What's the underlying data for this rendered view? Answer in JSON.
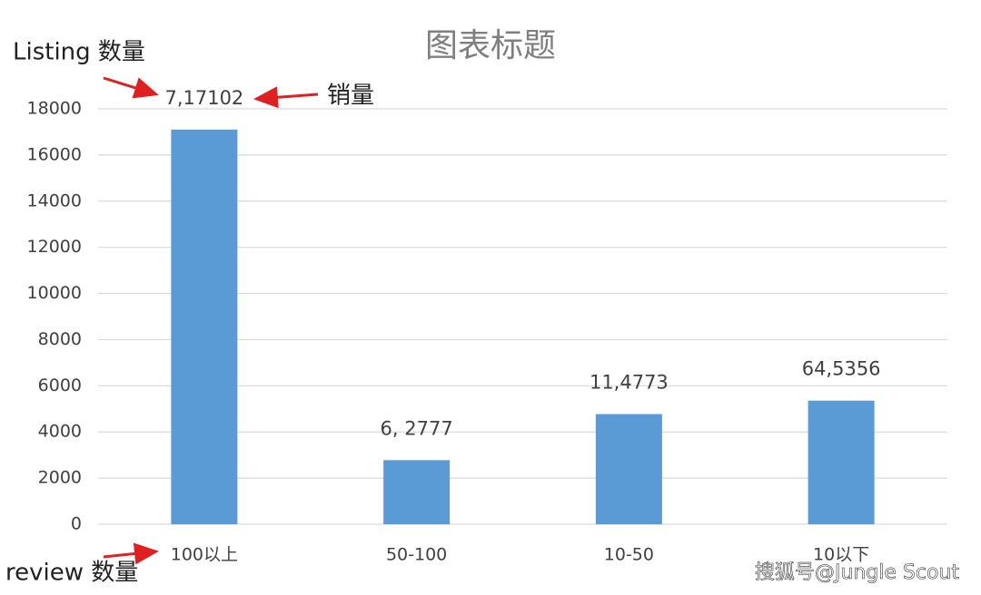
{
  "chart_data": {
    "type": "bar",
    "title": "图表标题",
    "categories": [
      "100以上",
      "50-100",
      "10-50",
      "10以下"
    ],
    "values": [
      17102,
      2777,
      4773,
      5356
    ],
    "data_labels": [
      "7,17102",
      "6, 2777",
      "11,4773",
      "64,5356"
    ],
    "color": "#5b9bd5",
    "ylim": [
      0,
      18000
    ],
    "yticks": [
      0,
      2000,
      4000,
      6000,
      8000,
      10000,
      12000,
      14000,
      16000,
      18000
    ],
    "grid": true,
    "annotations": [
      "Listing 数量",
      "销量",
      "review 数量",
      "搜狐号@Jungle Scout"
    ]
  }
}
